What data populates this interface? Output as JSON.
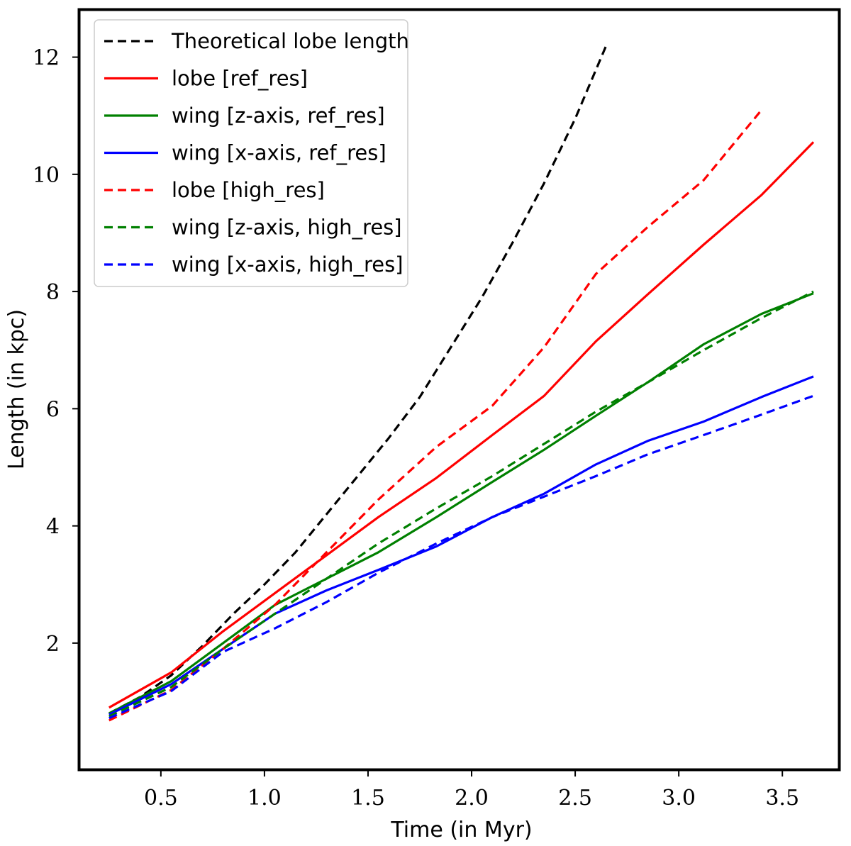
{
  "chart_data": {
    "type": "line",
    "title": "",
    "xlabel": "Time (in Myr)",
    "ylabel": "Length (in kpc)",
    "xlim": [
      0.1,
      3.78
    ],
    "ylim": [
      -0.18,
      12.83
    ],
    "xticks": [
      0.5,
      1.0,
      1.5,
      2.0,
      2.5,
      3.0,
      3.5
    ],
    "xtick_labels": [
      "0.5",
      "1.0",
      "1.5",
      "2.0",
      "2.5",
      "3.0",
      "3.5"
    ],
    "yticks": [
      2,
      4,
      6,
      8,
      10,
      12
    ],
    "ytick_labels": [
      "2",
      "4",
      "6",
      "8",
      "10",
      "12"
    ],
    "grid": false,
    "legend_position": "top-left",
    "series": [
      {
        "name": "Theoretical lobe length",
        "color": "#000000",
        "dashed": true,
        "x": [
          0.25,
          0.4,
          0.55,
          0.7,
          0.85,
          1.0,
          1.15,
          1.3,
          1.45,
          1.6,
          1.75,
          1.9,
          2.05,
          2.2,
          2.35,
          2.5,
          2.65
        ],
        "y": [
          0.8,
          1.08,
          1.45,
          1.95,
          2.5,
          3.0,
          3.55,
          4.2,
          4.85,
          5.5,
          6.2,
          7.05,
          7.9,
          8.85,
          9.85,
          10.95,
          12.2
        ]
      },
      {
        "name": "lobe [ref_res]",
        "color": "#ff0000",
        "dashed": false,
        "x": [
          0.25,
          0.55,
          0.8,
          1.05,
          1.3,
          1.55,
          1.83,
          2.1,
          2.35,
          2.6,
          2.85,
          3.12,
          3.4,
          3.65
        ],
        "y": [
          0.9,
          1.5,
          2.2,
          2.85,
          3.5,
          4.15,
          4.82,
          5.55,
          6.22,
          7.15,
          7.95,
          8.8,
          9.65,
          10.55
        ]
      },
      {
        "name": "wing [z-axis, ref_res]",
        "color": "#008000",
        "dashed": false,
        "x": [
          0.25,
          0.55,
          0.8,
          1.05,
          1.3,
          1.55,
          1.83,
          2.1,
          2.35,
          2.6,
          2.85,
          3.12,
          3.4,
          3.65
        ],
        "y": [
          0.8,
          1.35,
          2.0,
          2.65,
          3.1,
          3.55,
          4.15,
          4.75,
          5.3,
          5.88,
          6.45,
          7.1,
          7.62,
          7.97
        ]
      },
      {
        "name": "wing [x-axis, ref_res]",
        "color": "#0000ff",
        "dashed": false,
        "x": [
          0.25,
          0.55,
          0.8,
          1.05,
          1.3,
          1.55,
          1.83,
          2.1,
          2.35,
          2.6,
          2.85,
          3.12,
          3.4,
          3.65
        ],
        "y": [
          0.78,
          1.3,
          1.9,
          2.5,
          2.9,
          3.25,
          3.65,
          4.15,
          4.55,
          5.05,
          5.45,
          5.78,
          6.2,
          6.55
        ]
      },
      {
        "name": "lobe [high_res]",
        "color": "#ff0000",
        "dashed": true,
        "x": [
          0.25,
          0.55,
          0.8,
          1.05,
          1.3,
          1.55,
          1.83,
          2.1,
          2.35,
          2.6,
          2.85,
          3.12,
          3.4
        ],
        "y": [
          0.68,
          1.2,
          1.9,
          2.65,
          3.55,
          4.45,
          5.35,
          6.05,
          7.05,
          8.3,
          9.1,
          9.9,
          11.1
        ]
      },
      {
        "name": "wing [z-axis, high_res]",
        "color": "#008000",
        "dashed": true,
        "x": [
          0.25,
          0.55,
          0.8,
          1.05,
          1.3,
          1.55,
          1.83,
          2.1,
          2.35,
          2.6,
          2.85,
          3.12,
          3.4,
          3.65
        ],
        "y": [
          0.75,
          1.25,
          1.9,
          2.5,
          3.1,
          3.7,
          4.3,
          4.85,
          5.4,
          5.95,
          6.45,
          7.0,
          7.55,
          8.0
        ]
      },
      {
        "name": "wing [x-axis, high_res]",
        "color": "#0000ff",
        "dashed": true,
        "x": [
          0.25,
          0.55,
          0.8,
          1.05,
          1.3,
          1.55,
          1.83,
          2.1,
          2.35,
          2.6,
          2.85,
          3.12,
          3.4,
          3.65
        ],
        "y": [
          0.72,
          1.18,
          1.85,
          2.25,
          2.7,
          3.2,
          3.7,
          4.15,
          4.5,
          4.85,
          5.22,
          5.55,
          5.9,
          6.22
        ]
      }
    ]
  }
}
